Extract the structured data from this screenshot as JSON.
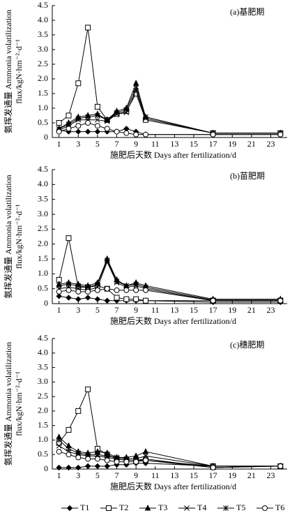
{
  "chart_data": [
    {
      "type": "line",
      "title": "(a)基肥期",
      "xlabel": "施肥后天数 Days after fertilization/d",
      "ylabel": [
        "氨挥发通量 Ammonia volatilization",
        "flux/kgN·hm⁻²·d⁻¹"
      ],
      "x": [
        1,
        2,
        3,
        4,
        5,
        6,
        7,
        8,
        9,
        10,
        17,
        24
      ],
      "xlim": [
        0.3,
        24.7
      ],
      "xticks": [
        1,
        3,
        5,
        7,
        9,
        11,
        13,
        15,
        17,
        19,
        21,
        23
      ],
      "ylim": [
        0,
        4.5
      ],
      "yticks": [
        0,
        0.5,
        {
          "value": 1,
          "label": "1.0"
        },
        1.5,
        {
          "value": 2,
          "label": "2.0"
        },
        2.5,
        {
          "value": 3,
          "label": "3.0"
        },
        3.5,
        {
          "value": 4,
          "label": "4.0"
        },
        4.5
      ],
      "series": [
        {
          "name": "T1",
          "marker": "diamond",
          "color": "#000",
          "values": [
            0.25,
            0.2,
            0.2,
            0.2,
            0.2,
            0.2,
            0.2,
            0.3,
            0.2,
            0.1,
            0.1,
            0.1
          ]
        },
        {
          "name": "T2",
          "marker": "square",
          "color": "#000",
          "values": [
            0.5,
            0.75,
            1.85,
            3.75,
            1.05,
            0.6,
            0.8,
            0.9,
            1.5,
            0.6,
            0.15,
            0.15
          ]
        },
        {
          "name": "T3",
          "marker": "triangle",
          "color": "#000",
          "values": [
            0.3,
            0.5,
            0.7,
            0.75,
            0.8,
            0.6,
            0.9,
            1.0,
            1.85,
            0.7,
            0.15,
            0.15
          ]
        },
        {
          "name": "T4",
          "marker": "cross",
          "color": "#000",
          "values": [
            0.25,
            0.4,
            0.6,
            0.6,
            0.6,
            0.55,
            0.8,
            0.85,
            1.6,
            0.65,
            0.15,
            0.15
          ]
        },
        {
          "name": "T5",
          "marker": "star",
          "color": "#000",
          "values": [
            0.3,
            0.45,
            0.65,
            0.7,
            0.75,
            0.6,
            0.85,
            0.95,
            1.7,
            0.7,
            0.15,
            0.15
          ]
        },
        {
          "name": "T6",
          "marker": "circle",
          "color": "#000",
          "values": [
            0.2,
            0.3,
            0.4,
            0.5,
            0.4,
            0.3,
            0.2,
            0.15,
            0.1,
            0.1,
            0.1,
            0.1
          ]
        }
      ]
    },
    {
      "type": "line",
      "title": "(b)苗肥期",
      "xlabel": "施肥后天数 Days after fertilization/d",
      "ylabel": [
        "氨挥发通量 Ammonia volatilization",
        "flux/kgN·hm⁻²·d⁻¹"
      ],
      "x": [
        1,
        2,
        3,
        4,
        5,
        6,
        7,
        8,
        9,
        10,
        17,
        24
      ],
      "xlim": [
        0.3,
        24.7
      ],
      "xticks": [
        1,
        3,
        5,
        7,
        9,
        11,
        13,
        15,
        17,
        19,
        21,
        23
      ],
      "ylim": [
        0,
        4.5
      ],
      "yticks": [
        0,
        0.5,
        {
          "value": 1,
          "label": "1.0"
        },
        1.5,
        {
          "value": 2,
          "label": "2.0"
        },
        2.5,
        {
          "value": 3,
          "label": "3.0"
        },
        3.5,
        {
          "value": 4,
          "label": "4.0"
        },
        4.5
      ],
      "series": [
        {
          "marker": "diamond",
          "color": "#000",
          "values": [
            0.25,
            0.2,
            0.15,
            0.2,
            0.15,
            0.1,
            0.1,
            0.1,
            0.1,
            0.1,
            0.05,
            0.05
          ]
        },
        {
          "marker": "square",
          "color": "#000",
          "values": [
            0.8,
            2.2,
            0.55,
            0.55,
            0.6,
            0.5,
            0.2,
            0.15,
            0.15,
            0.1,
            0.1,
            0.1
          ]
        },
        {
          "marker": "triangle",
          "color": "#000",
          "values": [
            0.65,
            0.7,
            0.65,
            0.6,
            0.7,
            1.5,
            0.8,
            0.6,
            0.7,
            0.6,
            0.15,
            0.15
          ]
        },
        {
          "marker": "cross",
          "color": "#000",
          "values": [
            0.5,
            0.55,
            0.5,
            0.45,
            0.55,
            1.4,
            0.7,
            0.55,
            0.6,
            0.5,
            0.1,
            0.1
          ]
        },
        {
          "marker": "star",
          "color": "#000",
          "values": [
            0.6,
            0.65,
            0.6,
            0.55,
            0.65,
            1.45,
            0.75,
            0.6,
            0.65,
            0.55,
            0.12,
            0.12
          ]
        },
        {
          "marker": "circle",
          "color": "#000",
          "values": [
            0.4,
            0.45,
            0.4,
            0.4,
            0.45,
            0.5,
            0.45,
            0.45,
            0.45,
            0.45,
            0.1,
            0.1
          ]
        }
      ]
    },
    {
      "type": "line",
      "title": "(c)穗肥期",
      "xlabel": "施肥后天数 Days after fertilization/d",
      "ylabel": [
        "氨挥发通量 Ammonia volatilization",
        "flux/kgN·hm⁻²·d⁻¹"
      ],
      "x": [
        1,
        2,
        3,
        4,
        5,
        6,
        7,
        8,
        9,
        10,
        17,
        24
      ],
      "xlim": [
        0.3,
        24.7
      ],
      "xticks": [
        1,
        3,
        5,
        7,
        9,
        11,
        13,
        15,
        17,
        19,
        21,
        23
      ],
      "ylim": [
        0,
        4.5
      ],
      "yticks": [
        0,
        0.5,
        {
          "value": 1,
          "label": "1.0"
        },
        1.5,
        {
          "value": 2,
          "label": "2.0"
        },
        2.5,
        {
          "value": 3,
          "label": "3.0"
        },
        3.5,
        {
          "value": 4,
          "label": "4.0"
        },
        4.5
      ],
      "series": [
        {
          "marker": "diamond",
          "color": "#000",
          "values": [
            0.05,
            0.05,
            0.05,
            0.1,
            0.1,
            0.1,
            0.15,
            0.15,
            0.2,
            0.2,
            0.1,
            0.1
          ]
        },
        {
          "marker": "square",
          "color": "#000",
          "values": [
            0.9,
            1.35,
            2.0,
            2.75,
            0.7,
            0.5,
            0.35,
            0.3,
            0.3,
            0.3,
            0.1,
            0.1
          ]
        },
        {
          "marker": "triangle",
          "color": "#000",
          "values": [
            1.1,
            0.8,
            0.6,
            0.55,
            0.6,
            0.55,
            0.4,
            0.4,
            0.45,
            0.6,
            0.1,
            0.1
          ]
        },
        {
          "marker": "cross",
          "color": "#000",
          "values": [
            0.8,
            0.6,
            0.5,
            0.45,
            0.45,
            0.4,
            0.35,
            0.3,
            0.3,
            0.35,
            0.05,
            0.1
          ]
        },
        {
          "marker": "star",
          "color": "#000",
          "values": [
            1.0,
            0.7,
            0.55,
            0.5,
            0.5,
            0.45,
            0.4,
            0.35,
            0.35,
            0.45,
            0.1,
            0.1
          ]
        },
        {
          "marker": "circle",
          "color": "#000",
          "values": [
            0.6,
            0.5,
            0.4,
            0.35,
            0.35,
            0.3,
            0.25,
            0.25,
            0.25,
            0.3,
            0.05,
            0.1
          ]
        }
      ]
    }
  ]
}
